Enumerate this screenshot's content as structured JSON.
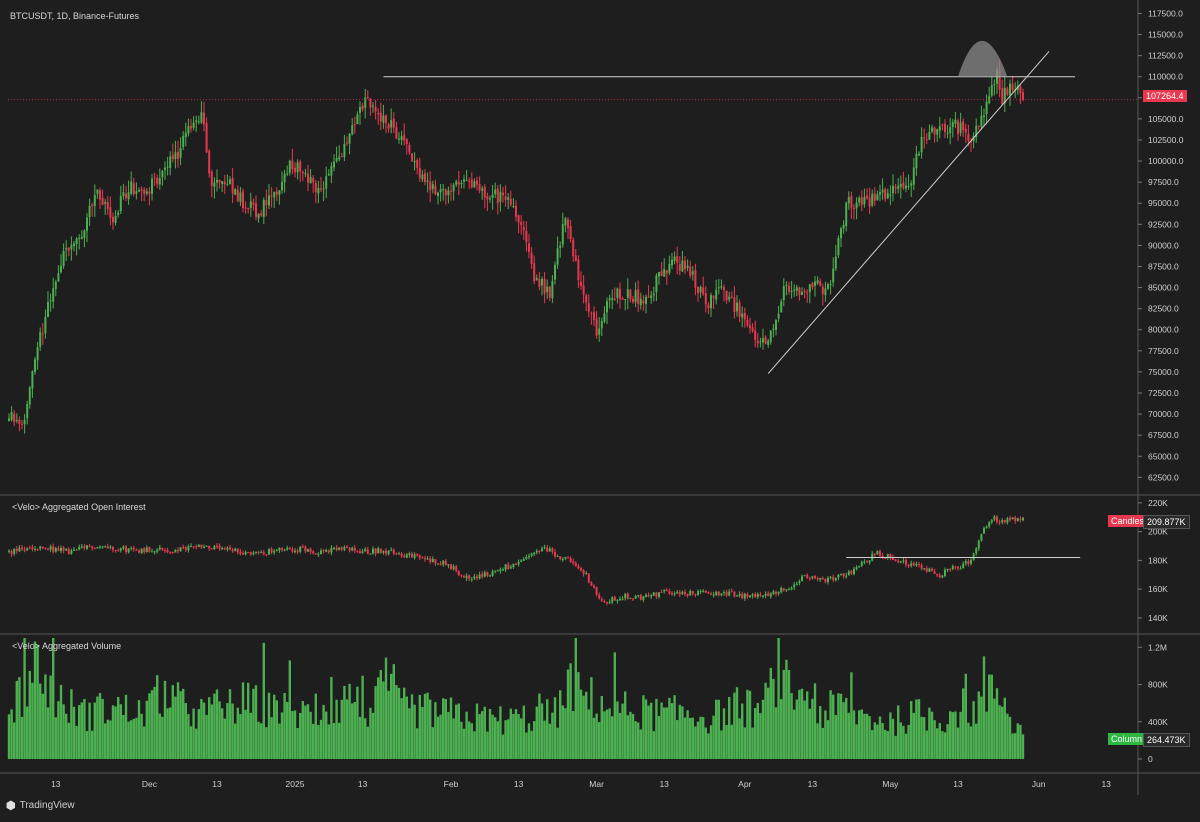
{
  "window": {
    "symbol_label": "BTCUSDT, 1D, Binance-Futures",
    "oi_label": "<Velo> Aggregated Open Interest",
    "volume_label": "<Velo> Aggregated Volume",
    "footer_brand": "TradingView"
  },
  "colors": {
    "background": "#1e1e1e",
    "up": "#4caf50",
    "down": "#e8384f",
    "grid": "#3a3a3a",
    "axis_text": "#cfcfcf"
  },
  "chart_data": [
    {
      "type": "candlestick",
      "title": "BTCUSDT, 1D, Binance-Futures",
      "ylim": [
        61000,
        118500
      ],
      "y_ticks": [
        62500,
        65000,
        67500,
        70000,
        72500,
        75000,
        77500,
        80000,
        82500,
        85000,
        87500,
        90000,
        92500,
        95000,
        97500,
        100000,
        102500,
        105000,
        107500,
        110000,
        112500,
        115000,
        117500
      ],
      "y_tick_labels": [
        "62500.0",
        "65000.0",
        "67500.0",
        "70000.0",
        "72500.0",
        "75000.0",
        "77500.0",
        "80000.0",
        "82500.0",
        "85000.0",
        "87500.0",
        "90000.0",
        "92500.0",
        "95000.0",
        "97500.0",
        "100000.0",
        "102500.0",
        "105000.0",
        "107500.0",
        "110000.0",
        "112500.0",
        "115000.0",
        "117500.0"
      ],
      "last_price": 107264.4,
      "last_price_label": "107264.4",
      "x_tick_labels": [
        "13",
        "Dec",
        "13",
        "2025",
        "13",
        "Feb",
        "13",
        "Mar",
        "13",
        "Apr",
        "13",
        "May",
        "13",
        "Jun",
        "13"
      ],
      "resistance_level": 110000,
      "trendline": {
        "start_price": 74800,
        "end_price": 113000
      },
      "anchors": [
        [
          0,
          69500
        ],
        [
          6,
          69500
        ],
        [
          10,
          76500
        ],
        [
          16,
          84000
        ],
        [
          22,
          90000
        ],
        [
          28,
          91000
        ],
        [
          34,
          97000
        ],
        [
          40,
          93000
        ],
        [
          46,
          97000
        ],
        [
          52,
          96500
        ],
        [
          58,
          98000
        ],
        [
          64,
          100500
        ],
        [
          70,
          104000
        ],
        [
          74,
          106000
        ],
        [
          78,
          97000
        ],
        [
          84,
          98000
        ],
        [
          90,
          95000
        ],
        [
          96,
          94000
        ],
        [
          102,
          96000
        ],
        [
          108,
          100000
        ],
        [
          114,
          98500
        ],
        [
          120,
          96500
        ],
        [
          126,
          100000
        ],
        [
          132,
          104000
        ],
        [
          137,
          107000
        ],
        [
          142,
          105500
        ],
        [
          148,
          104000
        ],
        [
          154,
          101000
        ],
        [
          160,
          97500
        ],
        [
          166,
          96500
        ],
        [
          172,
          97000
        ],
        [
          178,
          97000
        ],
        [
          184,
          95500
        ],
        [
          190,
          96000
        ],
        [
          196,
          93500
        ],
        [
          202,
          86000
        ],
        [
          208,
          84500
        ],
        [
          214,
          94000
        ],
        [
          220,
          84500
        ],
        [
          226,
          80000
        ],
        [
          232,
          84000
        ],
        [
          238,
          84500
        ],
        [
          244,
          83500
        ],
        [
          250,
          86000
        ],
        [
          256,
          88000
        ],
        [
          262,
          87000
        ],
        [
          268,
          83000
        ],
        [
          274,
          84500
        ],
        [
          280,
          82500
        ],
        [
          286,
          79000
        ],
        [
          292,
          78000
        ],
        [
          298,
          85000
        ],
        [
          304,
          84000
        ],
        [
          310,
          85000
        ],
        [
          316,
          85000
        ],
        [
          322,
          95000
        ],
        [
          328,
          95000
        ],
        [
          334,
          96000
        ],
        [
          340,
          96500
        ],
        [
          346,
          97000
        ],
        [
          352,
          103000
        ],
        [
          358,
          104000
        ],
        [
          364,
          104000
        ],
        [
          370,
          103000
        ],
        [
          376,
          106500
        ],
        [
          380,
          110000
        ],
        [
          382,
          107500
        ],
        [
          386,
          109000
        ],
        [
          388,
          108500
        ],
        [
          390,
          107264
        ]
      ]
    },
    {
      "type": "candlestick",
      "title": "<Velo> Aggregated Open Interest",
      "ylim": [
        133000,
        222000
      ],
      "y_ticks": [
        140000,
        160000,
        180000,
        200000,
        220000
      ],
      "y_tick_labels": [
        "140K",
        "160K",
        "180K",
        "200K",
        "220K"
      ],
      "last_value_label": "209.877K",
      "legend_label": "Candles",
      "resistance_level": 182000,
      "anchors": [
        [
          0,
          186000
        ],
        [
          8,
          188000
        ],
        [
          16,
          188000
        ],
        [
          24,
          186000
        ],
        [
          32,
          190000
        ],
        [
          40,
          189000
        ],
        [
          48,
          187000
        ],
        [
          56,
          188000
        ],
        [
          64,
          186000
        ],
        [
          72,
          191000
        ],
        [
          80,
          188000
        ],
        [
          88,
          186000
        ],
        [
          96,
          185000
        ],
        [
          104,
          187000
        ],
        [
          112,
          188000
        ],
        [
          120,
          186000
        ],
        [
          128,
          188000
        ],
        [
          136,
          186000
        ],
        [
          144,
          187000
        ],
        [
          152,
          184000
        ],
        [
          160,
          181000
        ],
        [
          168,
          178000
        ],
        [
          176,
          168000
        ],
        [
          184,
          170000
        ],
        [
          190,
          175000
        ],
        [
          196,
          177000
        ],
        [
          200,
          183000
        ],
        [
          206,
          188000
        ],
        [
          214,
          181000
        ],
        [
          222,
          170000
        ],
        [
          228,
          150000
        ],
        [
          236,
          155000
        ],
        [
          244,
          154000
        ],
        [
          252,
          158000
        ],
        [
          262,
          157000
        ],
        [
          272,
          158000
        ],
        [
          282,
          155000
        ],
        [
          290,
          156000
        ],
        [
          298,
          160000
        ],
        [
          306,
          168000
        ],
        [
          314,
          166000
        ],
        [
          322,
          170000
        ],
        [
          328,
          178000
        ],
        [
          334,
          185000
        ],
        [
          340,
          182000
        ],
        [
          346,
          178000
        ],
        [
          352,
          175000
        ],
        [
          358,
          170000
        ],
        [
          362,
          174000
        ],
        [
          366,
          175000
        ],
        [
          370,
          180000
        ],
        [
          374,
          200000
        ],
        [
          378,
          210000
        ],
        [
          382,
          207000
        ],
        [
          386,
          208000
        ],
        [
          390,
          209877
        ]
      ]
    },
    {
      "type": "bar",
      "title": "<Velo> Aggregated Volume",
      "ylim": [
        0,
        1300000
      ],
      "y_ticks": [
        0,
        400000,
        800000,
        1200000
      ],
      "y_tick_labels": [
        "0",
        "400K",
        "800K",
        "1.2M"
      ],
      "last_value_label": "264.473K",
      "legend_label": "Column",
      "anchors": [
        [
          0,
          500000
        ],
        [
          10,
          1000000
        ],
        [
          20,
          600000
        ],
        [
          30,
          480000
        ],
        [
          40,
          560000
        ],
        [
          50,
          480000
        ],
        [
          60,
          720000
        ],
        [
          70,
          480000
        ],
        [
          80,
          520000
        ],
        [
          90,
          600000
        ],
        [
          100,
          560000
        ],
        [
          110,
          500000
        ],
        [
          120,
          480000
        ],
        [
          130,
          640000
        ],
        [
          140,
          500000
        ],
        [
          146,
          900000
        ],
        [
          150,
          560000
        ],
        [
          160,
          520000
        ],
        [
          170,
          480000
        ],
        [
          180,
          440000
        ],
        [
          190,
          420000
        ],
        [
          200,
          440000
        ],
        [
          210,
          480000
        ],
        [
          216,
          800000
        ],
        [
          220,
          700000
        ],
        [
          230,
          560000
        ],
        [
          240,
          520000
        ],
        [
          250,
          480000
        ],
        [
          260,
          500000
        ],
        [
          270,
          440000
        ],
        [
          280,
          560000
        ],
        [
          290,
          520000
        ],
        [
          296,
          1000000
        ],
        [
          300,
          700000
        ],
        [
          310,
          480000
        ],
        [
          320,
          560000
        ],
        [
          330,
          440000
        ],
        [
          340,
          400000
        ],
        [
          350,
          480000
        ],
        [
          360,
          440000
        ],
        [
          366,
          560000
        ],
        [
          370,
          520000
        ],
        [
          376,
          640000
        ],
        [
          380,
          760000
        ],
        [
          384,
          480000
        ],
        [
          390,
          264473
        ]
      ]
    }
  ]
}
